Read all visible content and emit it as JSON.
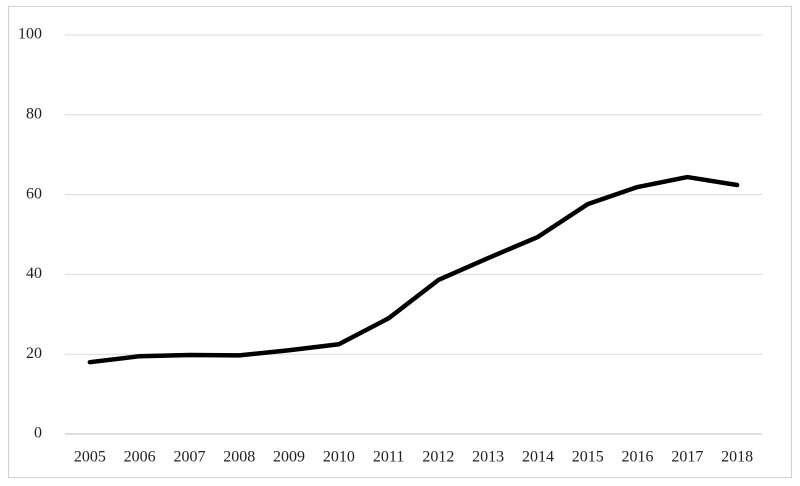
{
  "chart_data": {
    "type": "line",
    "categories": [
      "2005",
      "2006",
      "2007",
      "2008",
      "2009",
      "2010",
      "2011",
      "2012",
      "2013",
      "2014",
      "2015",
      "2016",
      "2017",
      "2018"
    ],
    "values": [
      18.0,
      19.5,
      19.8,
      19.7,
      21.0,
      22.5,
      29.0,
      38.6,
      44.1,
      49.4,
      57.6,
      61.9,
      64.4,
      62.4
    ],
    "color": "#000000",
    "ylim": [
      0,
      100
    ],
    "yticks": [
      0,
      20,
      40,
      60,
      80,
      100
    ],
    "grid": true
  }
}
